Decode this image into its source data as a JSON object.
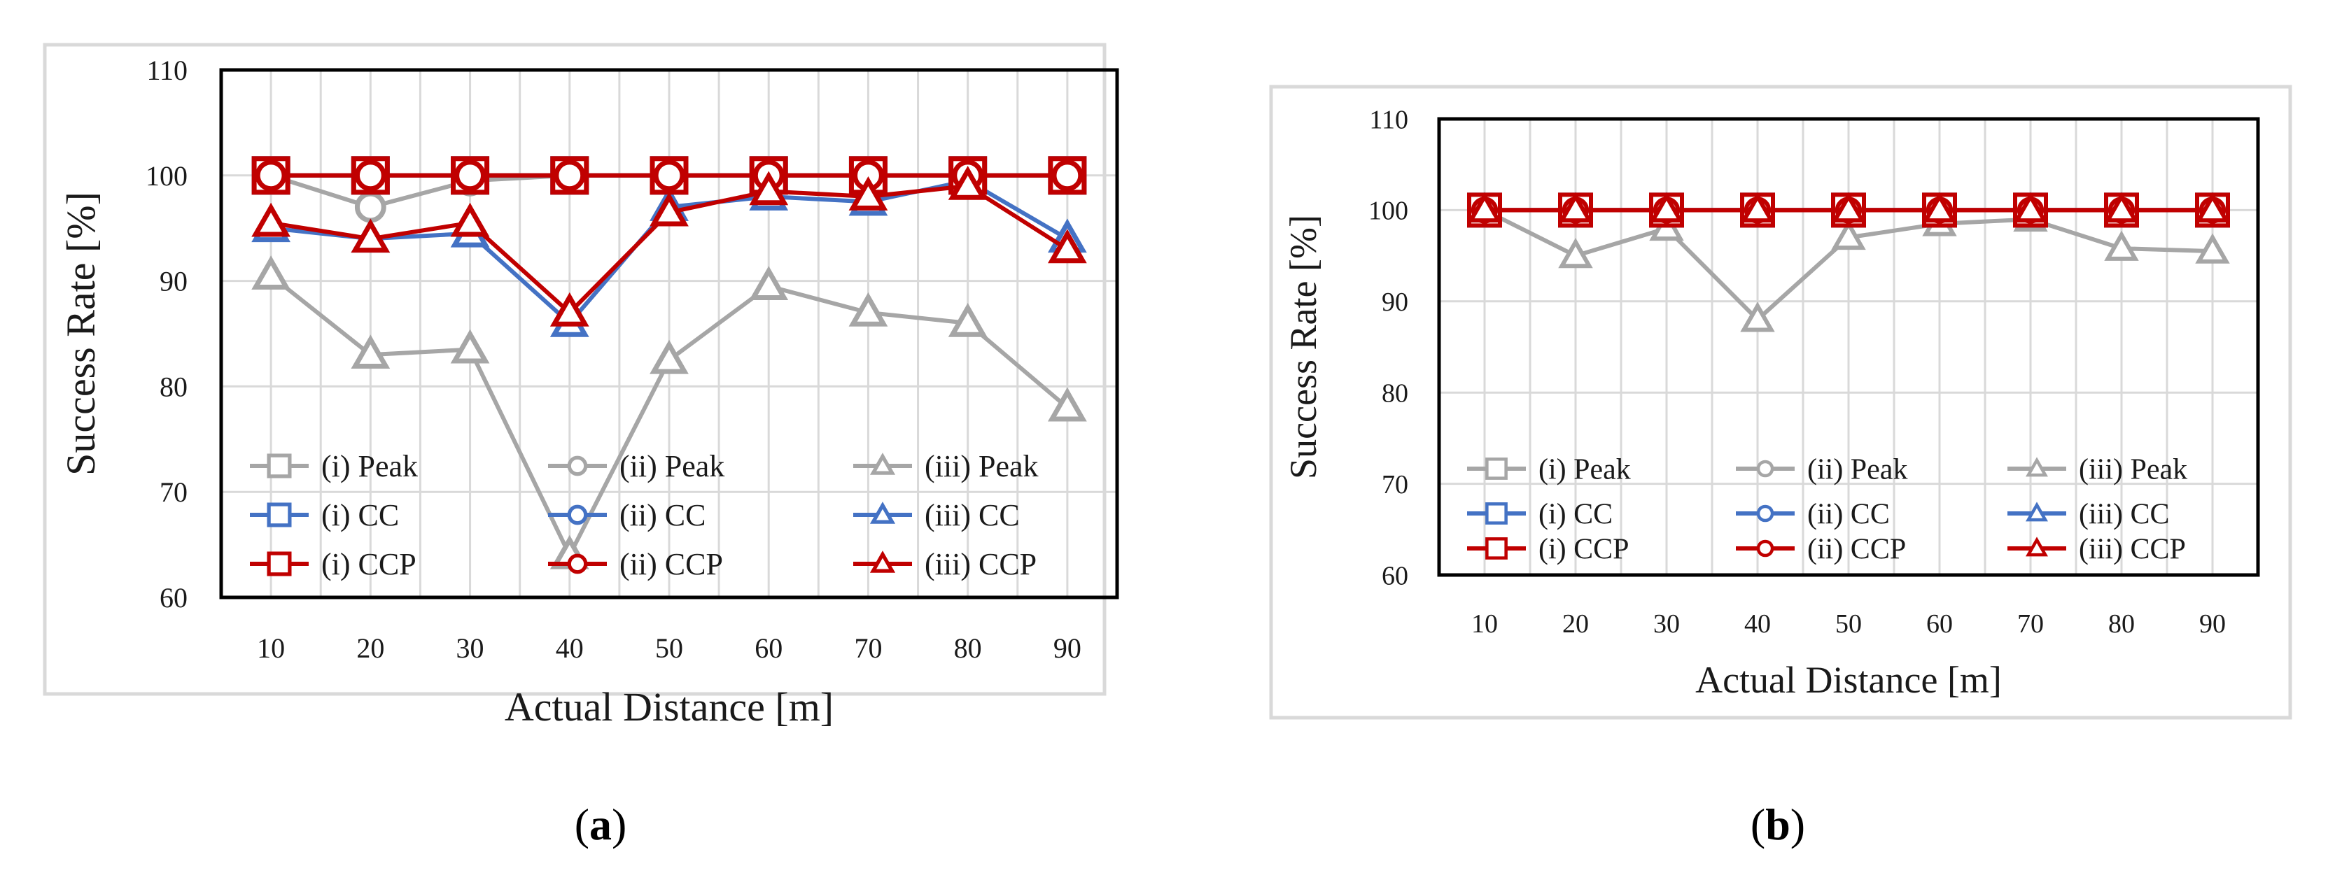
{
  "chart_data": [
    {
      "type": "line",
      "panel_label": "(a)",
      "xlabel": "Actual Distance [m]",
      "ylabel": "Success Rate [%]",
      "x": [
        10,
        20,
        30,
        40,
        50,
        60,
        70,
        80,
        90
      ],
      "ylim": [
        60,
        110
      ],
      "yticks": [
        60,
        70,
        80,
        90,
        100,
        110
      ],
      "grid": true,
      "legend_position": "bottom",
      "series": [
        {
          "name": "(i) Peak",
          "color": "#a6a6a6",
          "marker": "square",
          "values": [
            100,
            100,
            100,
            100,
            100,
            100,
            100,
            100,
            100
          ]
        },
        {
          "name": "(ii) Peak",
          "color": "#a6a6a6",
          "marker": "circle",
          "values": [
            100,
            97,
            99.5,
            100,
            100,
            100,
            100,
            100,
            100
          ]
        },
        {
          "name": "(iii) Peak",
          "color": "#a6a6a6",
          "marker": "triangle",
          "values": [
            90.5,
            83,
            83.5,
            64,
            82.5,
            89.5,
            87,
            86,
            78
          ]
        },
        {
          "name": "(i) CC",
          "color": "#4472c4",
          "marker": "square",
          "values": [
            100,
            100,
            100,
            100,
            100,
            100,
            100,
            100,
            100
          ]
        },
        {
          "name": "(ii) CC",
          "color": "#4472c4",
          "marker": "circle",
          "values": [
            100,
            100,
            100,
            100,
            100,
            100,
            100,
            100,
            100
          ]
        },
        {
          "name": "(iii) CC",
          "color": "#4472c4",
          "marker": "triangle",
          "values": [
            95,
            94,
            94.5,
            86,
            97,
            98,
            97.5,
            99.5,
            94
          ]
        },
        {
          "name": "(i) CCP",
          "color": "#c00000",
          "marker": "square",
          "values": [
            100,
            100,
            100,
            100,
            100,
            100,
            100,
            100,
            100
          ]
        },
        {
          "name": "(ii) CCP",
          "color": "#c00000",
          "marker": "circle",
          "values": [
            100,
            100,
            100,
            100,
            100,
            100,
            100,
            100,
            100
          ]
        },
        {
          "name": "(iii) CCP",
          "color": "#c00000",
          "marker": "triangle",
          "values": [
            95.5,
            94,
            95.5,
            87,
            96.5,
            98.5,
            98,
            99,
            93
          ]
        }
      ]
    },
    {
      "type": "line",
      "panel_label": "(b)",
      "xlabel": "Actual Distance [m]",
      "ylabel": "Success Rate [%]",
      "x": [
        10,
        20,
        30,
        40,
        50,
        60,
        70,
        80,
        90
      ],
      "ylim": [
        60,
        110
      ],
      "yticks": [
        60,
        70,
        80,
        90,
        100,
        110
      ],
      "grid": true,
      "legend_position": "bottom",
      "series": [
        {
          "name": "(i) Peak",
          "color": "#a6a6a6",
          "marker": "square",
          "values": [
            100,
            100,
            100,
            100,
            100,
            100,
            100,
            100,
            100
          ]
        },
        {
          "name": "(ii) Peak",
          "color": "#a6a6a6",
          "marker": "circle",
          "values": [
            100,
            100,
            100,
            100,
            100,
            100,
            100,
            100,
            100
          ]
        },
        {
          "name": "(iii) Peak",
          "color": "#a6a6a6",
          "marker": "triangle",
          "values": [
            100,
            95,
            98,
            88,
            97,
            98.5,
            99,
            95.8,
            95.5
          ]
        },
        {
          "name": "(i) CC",
          "color": "#4472c4",
          "marker": "square",
          "values": [
            100,
            100,
            100,
            100,
            100,
            100,
            100,
            100,
            100
          ]
        },
        {
          "name": "(ii) CC",
          "color": "#4472c4",
          "marker": "circle",
          "values": [
            100,
            100,
            100,
            100,
            100,
            100,
            100,
            100,
            100
          ]
        },
        {
          "name": "(iii) CC",
          "color": "#4472c4",
          "marker": "triangle",
          "values": [
            100,
            100,
            100,
            100,
            100,
            100,
            100,
            100,
            100
          ]
        },
        {
          "name": "(i) CCP",
          "color": "#c00000",
          "marker": "square",
          "values": [
            100,
            100,
            100,
            100,
            100,
            100,
            100,
            100,
            100
          ]
        },
        {
          "name": "(ii) CCP",
          "color": "#c00000",
          "marker": "circle",
          "values": [
            100,
            100,
            100,
            100,
            100,
            100,
            100,
            100,
            100
          ]
        },
        {
          "name": "(iii) CCP",
          "color": "#c00000",
          "marker": "triangle",
          "values": [
            100,
            100,
            100,
            100,
            100,
            100,
            100,
            100,
            100
          ]
        }
      ]
    }
  ]
}
